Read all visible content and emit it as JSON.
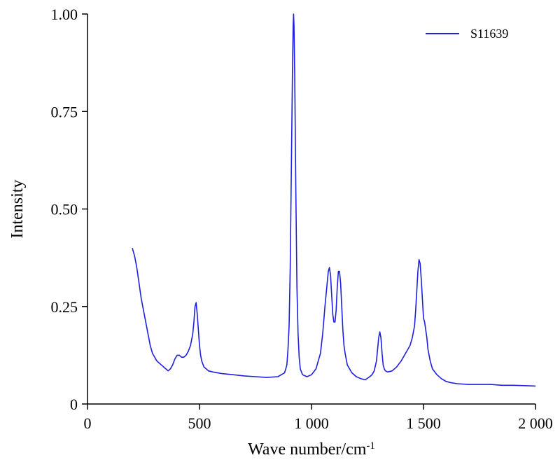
{
  "chart_data": {
    "type": "line",
    "xlabel": "Wave number/cm",
    "xlabel_superscript": "-1",
    "ylabel": "Intensity",
    "xlim": [
      0,
      2000
    ],
    "ylim": [
      0,
      1.0
    ],
    "xticks": [
      0,
      500,
      1000,
      1500,
      2000
    ],
    "xtick_labels": [
      "0",
      "500",
      "1 000",
      "1 500",
      "2 000"
    ],
    "yticks": [
      0,
      0.25,
      0.5,
      0.75,
      1.0
    ],
    "ytick_labels": [
      "0",
      "0.25",
      "0.50",
      "0.75",
      "1.00"
    ],
    "grid": false,
    "legend_position": "top-right",
    "series_color": "#1f1fe0",
    "series": [
      {
        "name": "S11639",
        "x": [
          200,
          210,
          220,
          230,
          240,
          250,
          260,
          270,
          280,
          290,
          300,
          310,
          320,
          330,
          340,
          350,
          360,
          370,
          380,
          390,
          400,
          410,
          420,
          430,
          440,
          450,
          460,
          470,
          475,
          480,
          485,
          490,
          495,
          500,
          505,
          510,
          520,
          530,
          540,
          560,
          580,
          600,
          650,
          700,
          750,
          800,
          850,
          880,
          890,
          895,
          900,
          905,
          910,
          915,
          918,
          920,
          922,
          925,
          930,
          935,
          940,
          945,
          950,
          960,
          980,
          1000,
          1020,
          1040,
          1050,
          1060,
          1070,
          1075,
          1080,
          1085,
          1090,
          1095,
          1100,
          1105,
          1110,
          1115,
          1120,
          1125,
          1130,
          1135,
          1140,
          1145,
          1150,
          1160,
          1180,
          1200,
          1220,
          1240,
          1260,
          1270,
          1280,
          1290,
          1295,
          1300,
          1305,
          1310,
          1315,
          1320,
          1325,
          1330,
          1340,
          1360,
          1380,
          1400,
          1420,
          1440,
          1450,
          1460,
          1465,
          1470,
          1475,
          1480,
          1485,
          1490,
          1495,
          1500,
          1505,
          1510,
          1515,
          1520,
          1530,
          1540,
          1560,
          1580,
          1600,
          1620,
          1650,
          1700,
          1750,
          1800,
          1850,
          1900,
          1950,
          2000
        ],
        "y": [
          0.4,
          0.38,
          0.35,
          0.31,
          0.27,
          0.24,
          0.21,
          0.18,
          0.15,
          0.13,
          0.12,
          0.11,
          0.105,
          0.1,
          0.095,
          0.09,
          0.085,
          0.09,
          0.1,
          0.115,
          0.125,
          0.125,
          0.12,
          0.12,
          0.125,
          0.135,
          0.15,
          0.18,
          0.21,
          0.25,
          0.26,
          0.23,
          0.19,
          0.15,
          0.125,
          0.11,
          0.095,
          0.09,
          0.085,
          0.082,
          0.08,
          0.078,
          0.075,
          0.072,
          0.07,
          0.068,
          0.07,
          0.08,
          0.1,
          0.14,
          0.2,
          0.35,
          0.6,
          0.85,
          0.97,
          1.0,
          0.97,
          0.85,
          0.55,
          0.3,
          0.18,
          0.12,
          0.09,
          0.075,
          0.07,
          0.075,
          0.09,
          0.13,
          0.18,
          0.25,
          0.31,
          0.34,
          0.35,
          0.33,
          0.28,
          0.23,
          0.21,
          0.21,
          0.24,
          0.3,
          0.34,
          0.34,
          0.31,
          0.25,
          0.19,
          0.15,
          0.13,
          0.1,
          0.08,
          0.07,
          0.065,
          0.062,
          0.07,
          0.075,
          0.085,
          0.11,
          0.14,
          0.17,
          0.185,
          0.17,
          0.13,
          0.1,
          0.09,
          0.085,
          0.082,
          0.085,
          0.095,
          0.11,
          0.13,
          0.15,
          0.17,
          0.2,
          0.24,
          0.29,
          0.34,
          0.37,
          0.36,
          0.32,
          0.27,
          0.22,
          0.21,
          0.19,
          0.17,
          0.14,
          0.11,
          0.09,
          0.075,
          0.065,
          0.058,
          0.055,
          0.052,
          0.05,
          0.05,
          0.05,
          0.048,
          0.048,
          0.047,
          0.046
        ]
      }
    ]
  }
}
